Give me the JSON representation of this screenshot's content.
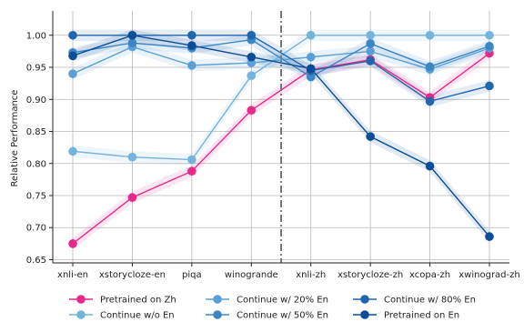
{
  "chart_data": {
    "type": "line",
    "title": "",
    "xlabel": "",
    "ylabel": "Relative Performance",
    "categories": [
      "xnli-en",
      "xstorycloze-en",
      "piqa",
      "winogrande",
      "xnli-zh",
      "xstorycloze-zh",
      "xcopa-zh",
      "xwinograd-zh"
    ],
    "ylim": [
      0.645,
      1.038
    ],
    "yticks": [
      "0.65",
      "0.70",
      "0.75",
      "0.80",
      "0.85",
      "0.90",
      "0.95",
      "1.00"
    ],
    "grid": true,
    "divider_between": [
      "winogrande",
      "xnli-zh"
    ],
    "legend_position": "bottom",
    "series": [
      {
        "name": "Pretrained on Zh",
        "color": "#e7298a",
        "values": [
          0.675,
          0.747,
          0.788,
          0.883,
          0.946,
          0.962,
          0.903,
          0.972
        ]
      },
      {
        "name": "Continue w/o En",
        "color": "#74b3dc",
        "values": [
          0.819,
          0.81,
          0.806,
          0.937,
          1.0,
          1.0,
          1.0,
          1.0
        ]
      },
      {
        "name": "Continue w/ 20% En",
        "color": "#5aa0d6",
        "values": [
          0.94,
          0.982,
          0.953,
          0.957,
          0.966,
          0.975,
          0.947,
          0.98
        ]
      },
      {
        "name": "Continue w/ 50% En",
        "color": "#3b86c4",
        "values": [
          0.973,
          0.988,
          0.98,
          0.993,
          0.935,
          0.987,
          0.951,
          0.983
        ]
      },
      {
        "name": "Continue w/ 80% En",
        "color": "#1f66ac",
        "values": [
          1.0,
          1.0,
          1.0,
          1.0,
          0.945,
          0.96,
          0.897,
          0.921
        ]
      },
      {
        "name": "Pretrained on En",
        "color": "#0b4d97",
        "values": [
          0.968,
          1.0,
          0.984,
          0.966,
          0.948,
          0.842,
          0.796,
          0.686
        ]
      }
    ]
  }
}
